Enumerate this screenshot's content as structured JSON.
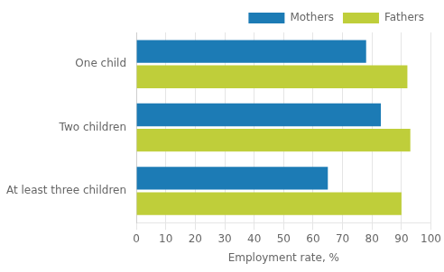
{
  "chart_data": {
    "type": "bar",
    "orientation": "horizontal",
    "categories": [
      "One child",
      "Two children",
      "At least three children"
    ],
    "series": [
      {
        "name": "Mothers",
        "color": "#1C7BB5",
        "values": [
          78,
          83,
          65
        ]
      },
      {
        "name": "Fathers",
        "color": "#BFCE3A",
        "values": [
          92,
          93,
          90
        ]
      }
    ],
    "xlabel": "Employment rate, %",
    "xlim": [
      0,
      100
    ],
    "xticks": [
      0,
      10,
      20,
      30,
      40,
      50,
      60,
      70,
      80,
      90,
      100
    ],
    "grid": true,
    "legend": "upper right"
  }
}
